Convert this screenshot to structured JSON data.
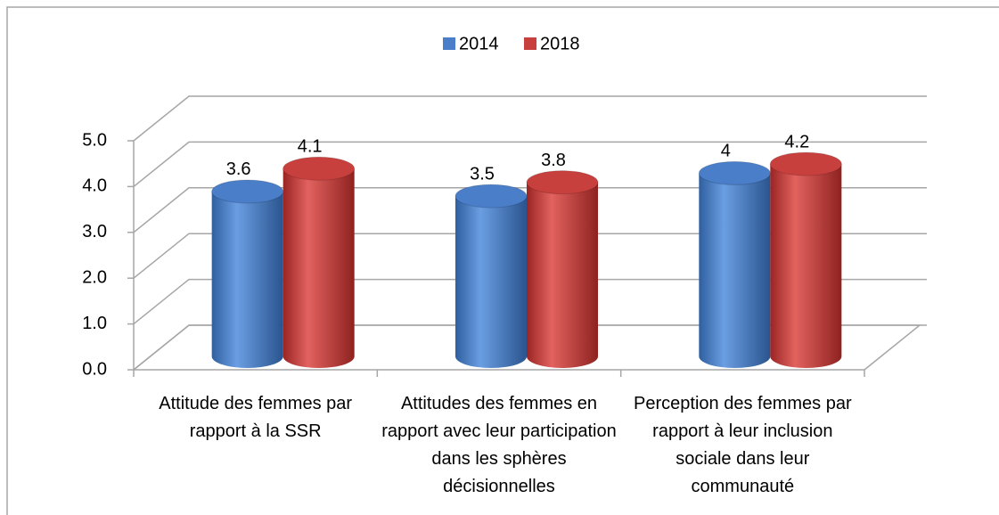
{
  "chart_data": {
    "type": "bar",
    "categories": [
      "Attitude des femmes par rapport à la SSR",
      "Attitudes des femmes en rapport avec leur participation dans les sphères décisionnelles",
      "Perception des femmes par rapport à leur inclusion sociale dans leur communauté"
    ],
    "series": [
      {
        "name": "2014",
        "color": "#4a7ec8",
        "values": [
          3.6,
          3.5,
          4
        ]
      },
      {
        "name": "2018",
        "color": "#c8403e",
        "values": [
          4.1,
          3.8,
          4.2
        ]
      }
    ],
    "ylim": [
      0,
      5
    ],
    "yticks": [
      {
        "value": 0,
        "label": "0.0"
      },
      {
        "value": 1,
        "label": "1.0"
      },
      {
        "value": 2,
        "label": "2.0"
      },
      {
        "value": 3,
        "label": "3.0"
      },
      {
        "value": 4,
        "label": "4.0"
      },
      {
        "value": 5,
        "label": "5.0"
      }
    ],
    "grid": true,
    "legend": "top"
  }
}
